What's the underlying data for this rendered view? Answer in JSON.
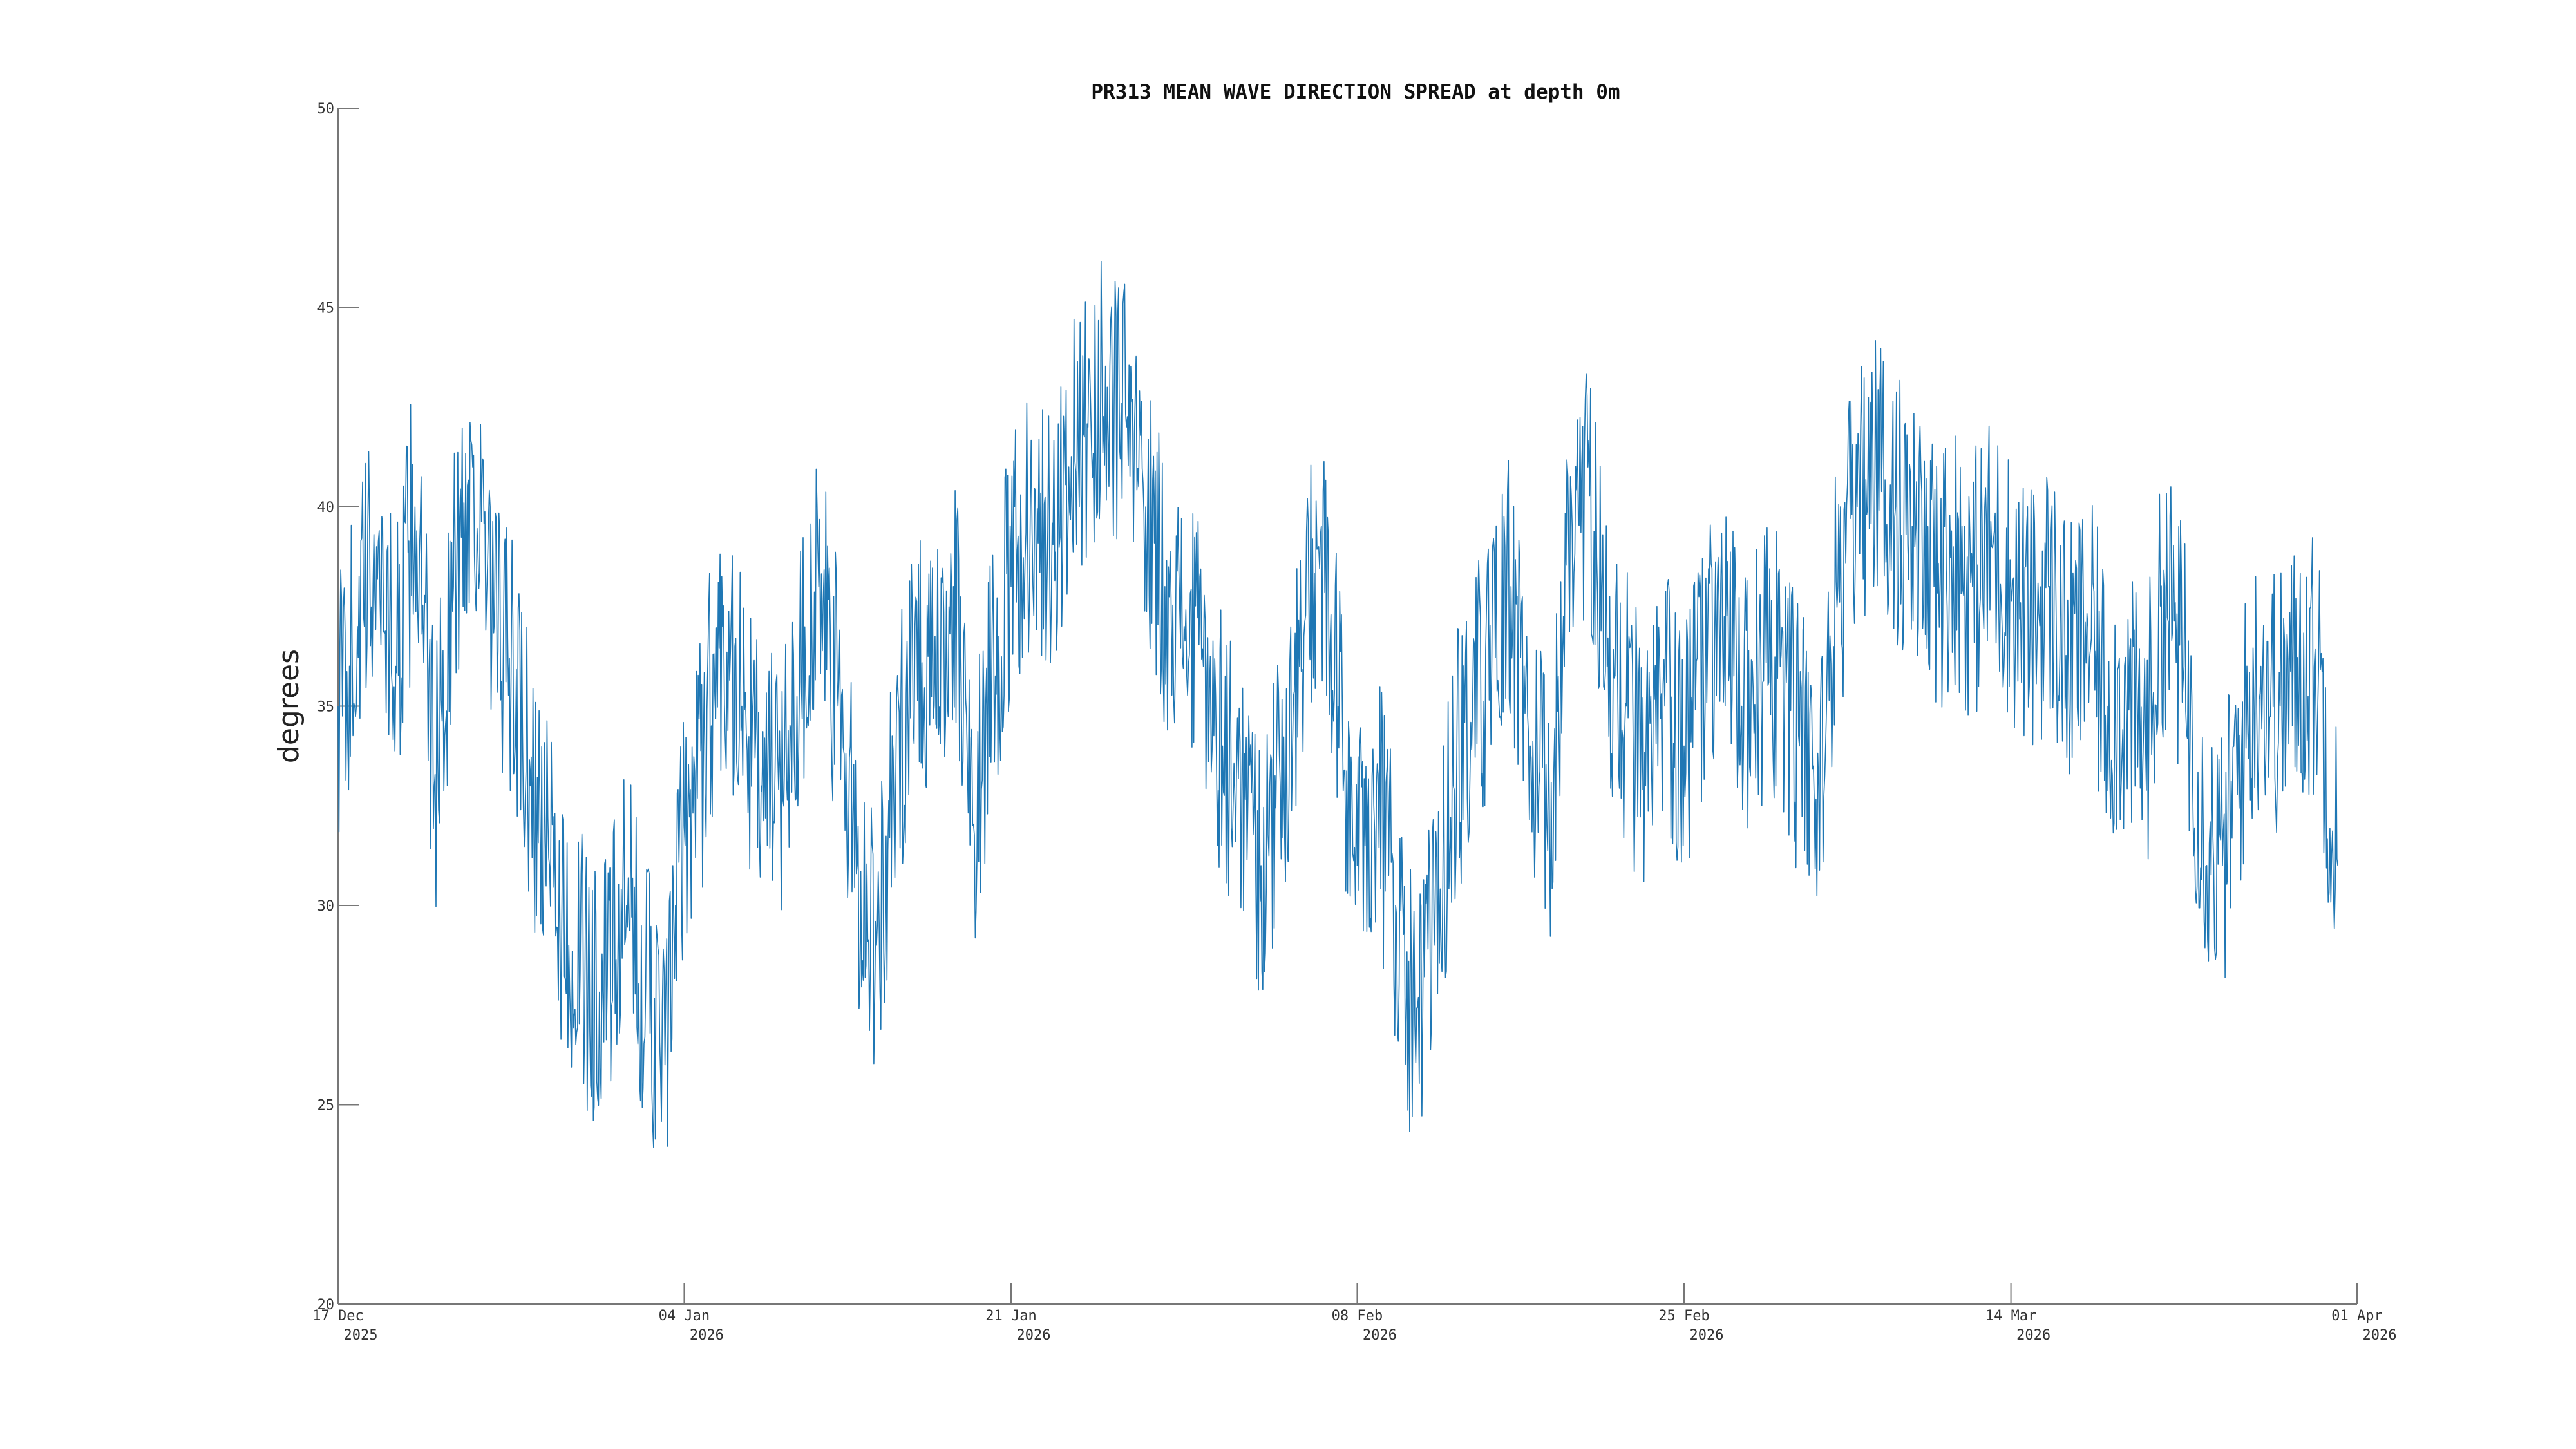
{
  "chart_data": {
    "type": "line",
    "title": "PR313 MEAN WAVE DIRECTION SPREAD at depth 0m",
    "xlabel": "",
    "ylabel": "degrees",
    "ylim": [
      20,
      50
    ],
    "xlim": [
      "2025-12-17",
      "2026-04-01"
    ],
    "grid": false,
    "legend": "none",
    "color": "#1f77b4",
    "y_ticks": [
      {
        "value": 20,
        "label": "20"
      },
      {
        "value": 25,
        "label": "25"
      },
      {
        "value": 30,
        "label": "30"
      },
      {
        "value": 35,
        "label": "35"
      },
      {
        "value": 40,
        "label": "40"
      },
      {
        "value": 45,
        "label": "45"
      },
      {
        "value": 50,
        "label": "50"
      }
    ],
    "x_ticks": [
      {
        "date": "2025-12-17",
        "label": "17 Dec",
        "year": "2025"
      },
      {
        "date": "2026-01-04",
        "label": "04 Jan",
        "year": "2026"
      },
      {
        "date": "2026-01-21",
        "label": "21 Jan",
        "year": "2026"
      },
      {
        "date": "2026-02-08",
        "label": "08 Feb",
        "year": "2026"
      },
      {
        "date": "2026-02-25",
        "label": "25 Feb",
        "year": "2026"
      },
      {
        "date": "2026-03-14",
        "label": "14 Mar",
        "year": "2026"
      },
      {
        "date": "2026-04-01",
        "label": "01 Apr",
        "year": "2026"
      }
    ],
    "series": [
      {
        "name": "",
        "x": [
          "2025-12-17",
          "2025-12-18",
          "2025-12-19",
          "2025-12-20",
          "2025-12-21",
          "2025-12-22",
          "2025-12-23",
          "2025-12-24",
          "2025-12-25",
          "2025-12-26",
          "2025-12-27",
          "2025-12-28",
          "2025-12-29",
          "2025-12-30",
          "2025-12-31",
          "2026-01-01",
          "2026-01-02",
          "2026-01-03",
          "2026-01-04",
          "2026-01-05",
          "2026-01-06",
          "2026-01-07",
          "2026-01-08",
          "2026-01-09",
          "2026-01-10",
          "2026-01-11",
          "2026-01-12",
          "2026-01-13",
          "2026-01-14",
          "2026-01-15",
          "2026-01-16",
          "2026-01-17",
          "2026-01-18",
          "2026-01-19",
          "2026-01-20",
          "2026-01-21",
          "2026-01-22",
          "2026-01-23",
          "2026-01-24",
          "2026-01-25",
          "2026-01-26",
          "2026-01-27",
          "2026-01-28",
          "2026-01-29",
          "2026-01-30",
          "2026-01-31",
          "2026-02-01",
          "2026-02-02",
          "2026-02-03",
          "2026-02-04",
          "2026-02-05",
          "2026-02-06",
          "2026-02-07",
          "2026-02-08",
          "2026-02-09",
          "2026-02-10",
          "2026-02-11",
          "2026-02-12",
          "2026-02-13",
          "2026-02-14",
          "2026-02-15",
          "2026-02-16",
          "2026-02-17",
          "2026-02-18",
          "2026-02-19",
          "2026-02-20",
          "2026-02-21",
          "2026-02-22",
          "2026-02-23",
          "2026-02-24",
          "2026-02-25",
          "2026-02-26",
          "2026-02-27",
          "2026-02-28",
          "2026-03-01",
          "2026-03-02",
          "2026-03-03",
          "2026-03-04",
          "2026-03-05",
          "2026-03-06",
          "2026-03-07",
          "2026-03-08",
          "2026-03-09",
          "2026-03-10",
          "2026-03-11",
          "2026-03-12",
          "2026-03-13",
          "2026-03-14",
          "2026-03-15",
          "2026-03-16",
          "2026-03-17",
          "2026-03-18",
          "2026-03-19",
          "2026-03-20",
          "2026-03-21",
          "2026-03-22",
          "2026-03-23",
          "2026-03-24",
          "2026-03-25",
          "2026-03-26",
          "2026-03-27",
          "2026-03-28",
          "2026-03-29",
          "2026-03-30",
          "2026-03-31"
        ],
        "y": [
          35,
          37,
          39,
          36,
          40,
          33,
          38,
          41,
          37,
          36,
          33,
          31,
          29,
          28,
          28,
          30,
          28,
          26,
          32,
          34,
          37,
          35,
          33,
          33,
          36,
          38,
          35,
          31,
          29,
          33,
          37,
          35,
          38,
          32,
          36,
          38,
          40,
          39,
          41,
          42,
          43,
          42,
          40,
          38,
          37,
          36,
          34,
          33,
          31,
          33,
          36,
          39,
          35,
          31,
          33,
          30,
          27,
          29,
          33,
          35,
          36,
          38,
          34,
          32,
          39,
          41,
          36,
          35,
          33,
          35,
          34,
          36,
          37,
          35,
          36,
          36,
          34,
          33,
          38,
          40,
          41,
          40,
          39,
          38,
          39,
          38,
          39,
          38,
          37,
          38,
          36,
          37,
          35,
          35,
          34,
          38,
          36,
          32,
          31,
          34,
          36,
          35,
          36,
          36,
          31
        ]
      }
    ]
  }
}
